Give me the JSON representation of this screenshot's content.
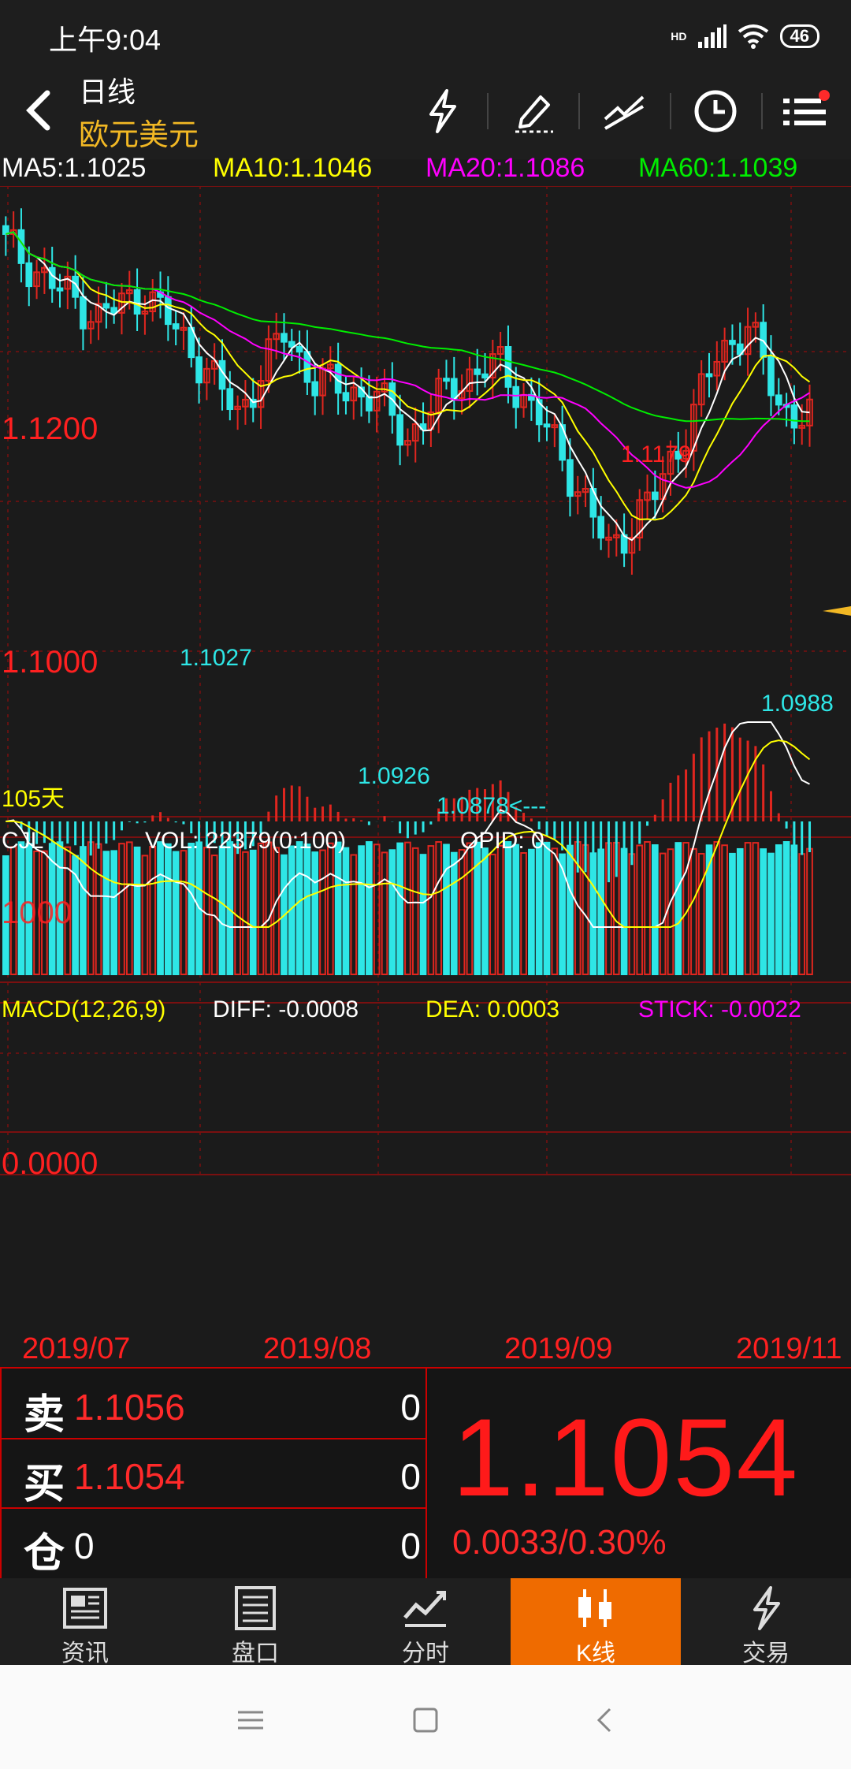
{
  "status_bar": {
    "time": "上午9:04",
    "hd": "HD",
    "battery": "46"
  },
  "nav": {
    "title": "日线",
    "subtitle": "欧元美元",
    "icons": [
      "back-icon",
      "lightning-icon",
      "pen-draw-icon",
      "trend-line-icon",
      "clock-icon",
      "menu-list-icon"
    ]
  },
  "ma_legend": {
    "ma5": "MA5:1.1025",
    "ma10": "MA10:1.1046",
    "ma20": "MA20:1.1086",
    "ma60": "MA60:1.1039",
    "colors": {
      "ma5": "#ffffff",
      "ma10": "#ffff00",
      "ma20": "#ff00ff",
      "ma60": "#00ee00"
    }
  },
  "kline": {
    "price_labels": {
      "upper": "1.1200",
      "lower": "1.1000"
    },
    "annotations": {
      "high_right": "1.1179",
      "low_1": "1.1027",
      "low_2": "1.0926",
      "low_min": "1.0878<---",
      "low_right": "1.0988"
    },
    "days": "105天"
  },
  "volume": {
    "title": "CJL",
    "vol": "VOL: 22379(0:100)",
    "opid": "OPID: 0",
    "axis_label": "1000"
  },
  "macd": {
    "title": "MACD(12,26,9)",
    "diff": "DIFF: -0.0008",
    "dea": "DEA: 0.0003",
    "stick": "STICK: -0.0022",
    "zero_label": "0.0000"
  },
  "dates": [
    "2019/07",
    "2019/08",
    "2019/09",
    "2019/11"
  ],
  "quote": {
    "sell_label": "卖",
    "sell_price": "1.1056",
    "sell_qty": "0",
    "buy_label": "买",
    "buy_price": "1.1054",
    "buy_qty": "0",
    "pos_label": "仓",
    "pos_value": "0",
    "pos_qty": "0",
    "last_price": "1.1054",
    "change": "0.0033/0.30%"
  },
  "tabs": [
    {
      "label": "资讯",
      "icon": "news-icon"
    },
    {
      "label": "盘口",
      "icon": "orderbook-icon"
    },
    {
      "label": "分时",
      "icon": "timeshare-icon"
    },
    {
      "label": "K线",
      "icon": "candlestick-icon",
      "active": true
    },
    {
      "label": "交易",
      "icon": "trade-lightning-icon"
    }
  ],
  "colors": {
    "up": "#e0261f",
    "down": "#2ee6e6",
    "grid": "#7a1010",
    "accent": "#ef6b00"
  }
}
